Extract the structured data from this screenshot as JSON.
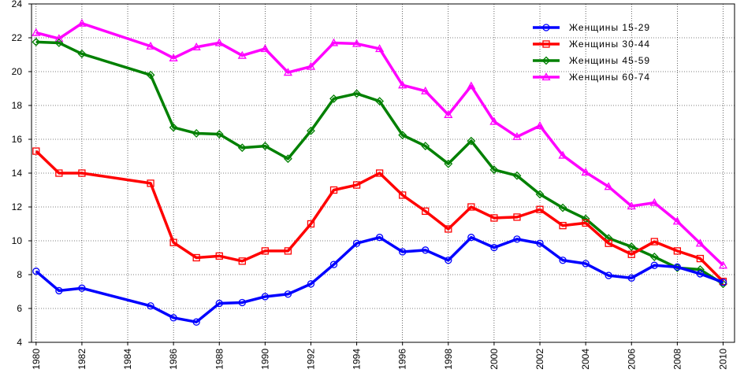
{
  "chart_data": {
    "type": "line",
    "title": "",
    "xlabel": "",
    "ylabel": "",
    "xlim": [
      1979.8,
      2010.5
    ],
    "ylim": [
      4,
      24
    ],
    "x_ticks": [
      "1980",
      "1982",
      "1984",
      "1986",
      "1988",
      "1990",
      "1992",
      "1994",
      "1996",
      "1998",
      "2000",
      "2002",
      "2004",
      "2006",
      "2008",
      "2010"
    ],
    "y_ticks": [
      "4",
      "6",
      "8",
      "10",
      "12",
      "14",
      "16",
      "18",
      "20",
      "22",
      "24"
    ],
    "grid": true,
    "legend_position": "top-right",
    "x": [
      1980,
      1981,
      1982,
      1985,
      1986,
      1987,
      1988,
      1989,
      1990,
      1991,
      1992,
      1993,
      1994,
      1995,
      1996,
      1997,
      1998,
      1999,
      2000,
      2001,
      2002,
      2003,
      2004,
      2005,
      2006,
      2007,
      2008,
      2009,
      2010
    ],
    "series": [
      {
        "name": "Женщины 15-29",
        "color": "#0000ff",
        "marker": "circle",
        "values": [
          8.2,
          7.05,
          7.2,
          6.15,
          5.45,
          5.2,
          6.3,
          6.35,
          6.7,
          6.85,
          7.45,
          8.6,
          9.85,
          10.2,
          9.35,
          9.45,
          8.85,
          10.2,
          9.6,
          10.1,
          9.85,
          8.85,
          8.65,
          7.95,
          7.8,
          8.55,
          8.45,
          8.05,
          7.55
        ]
      },
      {
        "name": "Женщины 30-44",
        "color": "#ff0000",
        "marker": "square",
        "values": [
          15.3,
          14.0,
          14.0,
          13.4,
          9.9,
          9.0,
          9.1,
          8.8,
          9.4,
          9.4,
          11.0,
          13.0,
          13.3,
          14.0,
          12.7,
          11.75,
          10.7,
          12.0,
          11.35,
          11.4,
          11.85,
          10.9,
          11.05,
          9.85,
          9.2,
          9.95,
          9.4,
          8.95,
          7.6
        ]
      },
      {
        "name": "Женщины 45-59",
        "color": "#008000",
        "marker": "diamond",
        "values": [
          21.75,
          21.7,
          21.05,
          19.8,
          16.7,
          16.35,
          16.3,
          15.5,
          15.6,
          14.85,
          16.5,
          18.4,
          18.7,
          18.25,
          16.25,
          15.6,
          14.55,
          15.9,
          14.2,
          13.85,
          12.75,
          11.95,
          11.3,
          10.15,
          9.65,
          9.05,
          8.4,
          8.3,
          7.45
        ]
      },
      {
        "name": "Женщины 60-74",
        "color": "#ff00ff",
        "marker": "triangle",
        "values": [
          22.3,
          21.95,
          22.85,
          21.5,
          20.8,
          21.45,
          21.7,
          20.95,
          21.35,
          19.95,
          20.3,
          21.7,
          21.65,
          21.35,
          19.2,
          18.85,
          17.45,
          19.15,
          17.05,
          16.15,
          16.8,
          15.05,
          14.05,
          13.2,
          12.05,
          12.25,
          11.15,
          9.85,
          8.55
        ]
      }
    ]
  }
}
